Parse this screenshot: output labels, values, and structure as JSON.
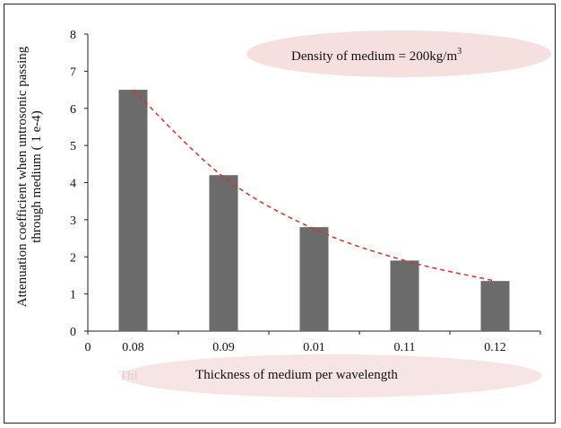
{
  "chart_data": {
    "type": "bar",
    "title": "",
    "annotation": "Density of medium = 200kg/m",
    "annotation_superscript": "3",
    "xlabel": "Thickness of medium per wavelength",
    "ylabel_line1": "Attenuation coefficient when untrosonic passing",
    "ylabel_line2": "through  medium ( 1 e-4)",
    "x_origin_label": "0",
    "categories": [
      "0.08",
      "0.09",
      "0.01",
      "0.11",
      "0.12"
    ],
    "values": [
      6.5,
      4.2,
      2.8,
      1.9,
      1.35
    ],
    "trend_values": [
      6.5,
      4.15,
      2.75,
      1.9,
      1.35
    ],
    "ylim": [
      0,
      8
    ],
    "yticks": [
      "0",
      "1",
      "2",
      "3",
      "4",
      "5",
      "6",
      "7",
      "8"
    ],
    "grid": false,
    "bar_color": "#6b6b6b",
    "trend_color": "#d9302a",
    "highlight_color": "#f3d9d9",
    "bleed_text": "Thi"
  }
}
